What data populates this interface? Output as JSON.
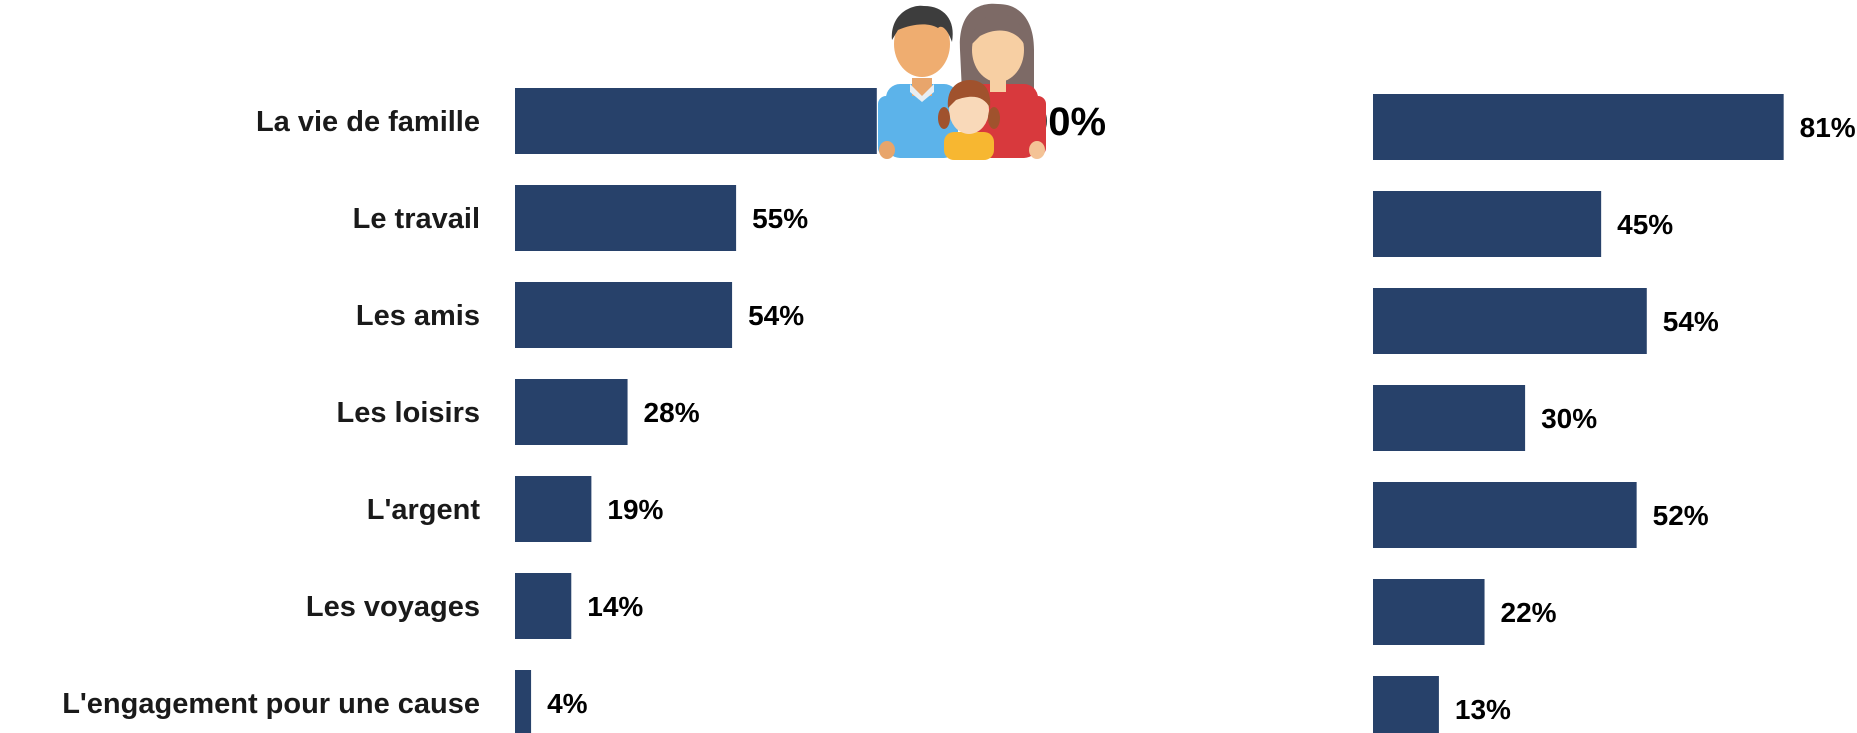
{
  "chart_data": {
    "type": "bar",
    "orientation": "horizontal",
    "categories": [
      "La vie de famille",
      "Le travail",
      "Les amis",
      "Les loisirs",
      "L'argent",
      "Les voyages",
      "L'engagement pour une cause"
    ],
    "series": [
      {
        "values": [
          90,
          55,
          54,
          28,
          19,
          14,
          4
        ],
        "labels": [
          "90%",
          "55%",
          "54%",
          "28%",
          "19%",
          "14%",
          "4%"
        ]
      },
      {
        "values": [
          81,
          45,
          54,
          30,
          52,
          22,
          13
        ],
        "labels": [
          "81%",
          "45%",
          "54%",
          "30%",
          "52%",
          "22%",
          "13%"
        ]
      }
    ],
    "xlim": [
      0,
      100
    ],
    "grid": false,
    "legend": "none",
    "bar_color": "#27416a"
  },
  "decoration": {
    "icon": "family-icon"
  }
}
